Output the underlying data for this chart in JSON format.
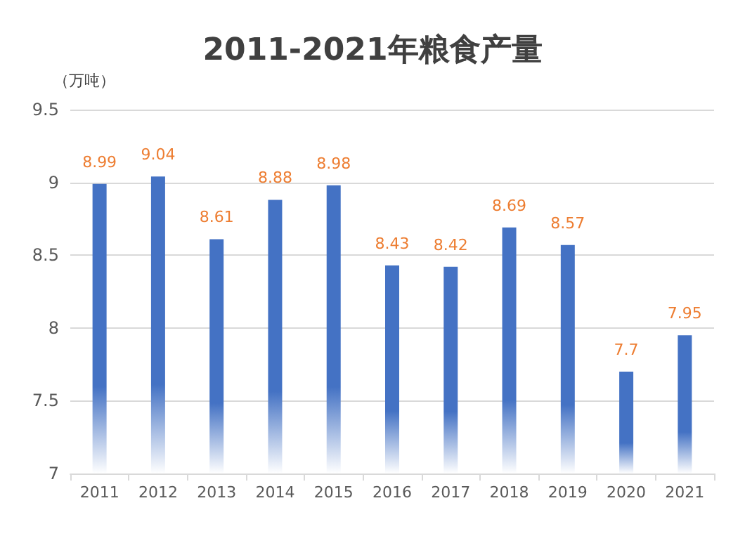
{
  "chart_data": {
    "type": "bar",
    "title": "2011-2021年粮食产量",
    "ylabel": "（万吨）",
    "categories": [
      "2011",
      "2012",
      "2013",
      "2014",
      "2015",
      "2016",
      "2017",
      "2018",
      "2019",
      "2020",
      "2021"
    ],
    "values": [
      8.99,
      9.04,
      8.61,
      8.88,
      8.98,
      8.43,
      8.42,
      8.69,
      8.57,
      7.7,
      7.95
    ],
    "color": "#4472c4",
    "ylim": [
      7,
      9.5
    ],
    "yticks": [
      7,
      7.5,
      8,
      8.5,
      9,
      9.5
    ],
    "grid": "y",
    "data_labels": true
  }
}
